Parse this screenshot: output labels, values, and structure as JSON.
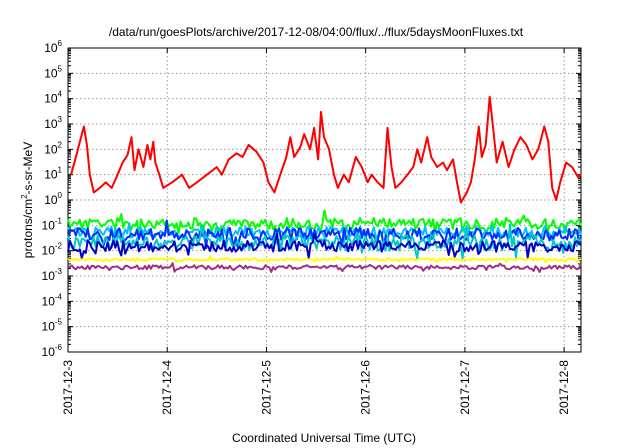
{
  "chart_data": {
    "type": "line",
    "title": "/data/run/goesPlots/archive/2017-12-08/04:00/flux/../flux/5daysMoonFluxes.txt",
    "xlabel": "Coordinated Universal Time (UTC)",
    "ylabel": {
      "prefix": "protons/cm",
      "sup": "2",
      "suffix": "-s-sr-MeV"
    },
    "y_scale": "log",
    "ylim": [
      1e-06,
      1000000.0
    ],
    "y_ticks": [
      {
        "value": 1e-06,
        "base": "10",
        "exp": "-6"
      },
      {
        "value": 1e-05,
        "base": "10",
        "exp": "-5"
      },
      {
        "value": 0.0001,
        "base": "10",
        "exp": "-4"
      },
      {
        "value": 0.001,
        "base": "10",
        "exp": "-3"
      },
      {
        "value": 0.01,
        "base": "10",
        "exp": "-2"
      },
      {
        "value": 0.1,
        "base": "10",
        "exp": "-1"
      },
      {
        "value": 1,
        "base": "10",
        "exp": "0"
      },
      {
        "value": 10,
        "base": "10",
        "exp": "1"
      },
      {
        "value": 100,
        "base": "10",
        "exp": "2"
      },
      {
        "value": 1000,
        "base": "10",
        "exp": "3"
      },
      {
        "value": 10000,
        "base": "10",
        "exp": "4"
      },
      {
        "value": 100000,
        "base": "10",
        "exp": "5"
      },
      {
        "value": 1000000,
        "base": "10",
        "exp": "6"
      }
    ],
    "x_scale": "days since 2017-12-03 00:00",
    "xlim": [
      0,
      5.17
    ],
    "x_ticks": [
      {
        "value": 0,
        "label": "2017-12-3"
      },
      {
        "value": 1,
        "label": "2017-12-4"
      },
      {
        "value": 2,
        "label": "2017-12-5"
      },
      {
        "value": 3,
        "label": "2017-12-6"
      },
      {
        "value": 4,
        "label": "2017-12-7"
      },
      {
        "value": 5,
        "label": "2017-12-8"
      }
    ],
    "grid": true,
    "series": [
      {
        "color": "#ff0000",
        "points": [
          [
            0.03,
            10
          ],
          [
            0.08,
            50
          ],
          [
            0.12,
            200
          ],
          [
            0.16,
            800
          ],
          [
            0.19,
            150
          ],
          [
            0.22,
            10
          ],
          [
            0.26,
            2
          ],
          [
            0.32,
            3
          ],
          [
            0.38,
            5
          ],
          [
            0.44,
            3
          ],
          [
            0.5,
            10
          ],
          [
            0.55,
            30
          ],
          [
            0.6,
            60
          ],
          [
            0.64,
            300
          ],
          [
            0.67,
            15
          ],
          [
            0.71,
            100
          ],
          [
            0.76,
            20
          ],
          [
            0.8,
            150
          ],
          [
            0.83,
            40
          ],
          [
            0.86,
            200
          ],
          [
            0.88,
            30
          ],
          [
            0.92,
            10
          ],
          [
            0.96,
            3
          ],
          [
            1.05,
            5
          ],
          [
            1.15,
            10
          ],
          [
            1.22,
            3
          ],
          [
            1.3,
            5
          ],
          [
            1.4,
            10
          ],
          [
            1.5,
            20
          ],
          [
            1.55,
            10
          ],
          [
            1.62,
            40
          ],
          [
            1.7,
            70
          ],
          [
            1.76,
            50
          ],
          [
            1.82,
            150
          ],
          [
            1.9,
            80
          ],
          [
            1.97,
            30
          ],
          [
            2.02,
            5
          ],
          [
            2.08,
            2
          ],
          [
            2.14,
            10
          ],
          [
            2.2,
            50
          ],
          [
            2.24,
            300
          ],
          [
            2.28,
            50
          ],
          [
            2.34,
            120
          ],
          [
            2.38,
            400
          ],
          [
            2.44,
            100
          ],
          [
            2.48,
            700
          ],
          [
            2.52,
            40
          ],
          [
            2.55,
            3000
          ],
          [
            2.58,
            300
          ],
          [
            2.63,
            100
          ],
          [
            2.68,
            10
          ],
          [
            2.72,
            3
          ],
          [
            2.78,
            10
          ],
          [
            2.83,
            5
          ],
          [
            2.9,
            50
          ],
          [
            2.96,
            20
          ],
          [
            3.02,
            5
          ],
          [
            3.06,
            10
          ],
          [
            3.12,
            5
          ],
          [
            3.18,
            3
          ],
          [
            3.22,
            700
          ],
          [
            3.26,
            20
          ],
          [
            3.3,
            3
          ],
          [
            3.36,
            5
          ],
          [
            3.42,
            10
          ],
          [
            3.48,
            20
          ],
          [
            3.52,
            100
          ],
          [
            3.56,
            30
          ],
          [
            3.62,
            300
          ],
          [
            3.66,
            50
          ],
          [
            3.72,
            20
          ],
          [
            3.78,
            30
          ],
          [
            3.82,
            15
          ],
          [
            3.88,
            40
          ],
          [
            3.92,
            5
          ],
          [
            3.96,
            0.8
          ],
          [
            4.02,
            2
          ],
          [
            4.06,
            5
          ],
          [
            4.1,
            40
          ],
          [
            4.14,
            800
          ],
          [
            4.17,
            50
          ],
          [
            4.21,
            150
          ],
          [
            4.25,
            12000
          ],
          [
            4.28,
            1000
          ],
          [
            4.32,
            30
          ],
          [
            4.38,
            200
          ],
          [
            4.44,
            20
          ],
          [
            4.5,
            100
          ],
          [
            4.56,
            300
          ],
          [
            4.62,
            150
          ],
          [
            4.68,
            40
          ],
          [
            4.74,
            100
          ],
          [
            4.8,
            800
          ],
          [
            4.84,
            200
          ],
          [
            4.88,
            3
          ],
          [
            4.92,
            1
          ],
          [
            4.96,
            5
          ],
          [
            5.02,
            30
          ],
          [
            5.08,
            20
          ],
          [
            5.14,
            8
          ],
          [
            5.17,
            10
          ]
        ]
      },
      {
        "color": "#00ff00",
        "base": 0.12,
        "amp": 0.22,
        "seed": 11
      },
      {
        "color": "#00c0ff",
        "base": 0.055,
        "amp": 0.22,
        "seed": 23
      },
      {
        "color": "#0030ff",
        "base": 0.045,
        "amp": 0.25,
        "seed": 37
      },
      {
        "color": "#00c8c8",
        "base": 0.02,
        "amp": 0.3,
        "seed": 41
      },
      {
        "color": "#0000c8",
        "base": 0.015,
        "amp": 0.22,
        "seed": 53
      },
      {
        "color": "#ffff00",
        "base": 0.0045,
        "amp": 0.05,
        "seed": 67
      },
      {
        "color": "#a03080",
        "base": 0.0022,
        "amp": 0.08,
        "seed": 79
      }
    ]
  }
}
